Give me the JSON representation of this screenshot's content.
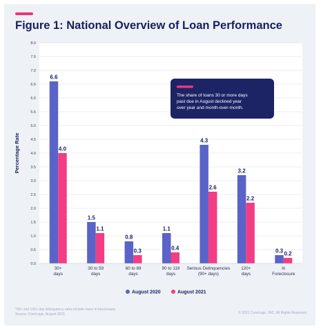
{
  "header": {
    "title": "Figure 1: National Overview of Loan Performance"
  },
  "colors": {
    "accent": "#e8377a",
    "title": "#17205e",
    "series_2020": "#5a63c8",
    "series_2021": "#f23d84",
    "callout_bg": "#1c2466"
  },
  "chart_data": {
    "type": "bar",
    "title": "Figure 1: National Overview of Loan Performance",
    "ylabel": "Percentage Rate",
    "xlabel": "",
    "ylim": [
      0,
      8.0
    ],
    "yticks": [
      "0.0",
      "0.5",
      "1.0",
      "1.5",
      "2.0",
      "2.5",
      "3.0",
      "3.5",
      "4.0",
      "4.5",
      "5.0",
      "5.5",
      "6.0",
      "6.5",
      "7.0",
      "7.5",
      "8.0"
    ],
    "grid": true,
    "legend_position": "bottom-center",
    "categories": [
      [
        "30+",
        "days"
      ],
      [
        "30 to 59",
        "days"
      ],
      [
        "60 to 89",
        "days"
      ],
      [
        "90 to 119",
        "days"
      ],
      [
        "Serious Delinquencies",
        "(90+ days)"
      ],
      [
        "120+",
        "days"
      ],
      [
        "In",
        "Foreclosure"
      ]
    ],
    "series": [
      {
        "name": "August 2020",
        "color": "#5a63c8",
        "values": [
          6.6,
          1.5,
          0.8,
          1.1,
          4.3,
          3.2,
          0.3
        ]
      },
      {
        "name": "August 2021",
        "color": "#f23d84",
        "values": [
          4.0,
          1.1,
          0.3,
          0.4,
          2.6,
          2.2,
          0.2
        ]
      }
    ],
    "callout": "The share of loans 30 or more days past due in August declined year over year and month-over-month."
  },
  "footer": {
    "note_1": "*90+ and 120+ day delinquency rates include loans in foreclosure.",
    "note_2": "Source: CoreLogic, August 2021",
    "copyright": "© 2021 CoreLogic, INC. All Rights Reserved."
  }
}
